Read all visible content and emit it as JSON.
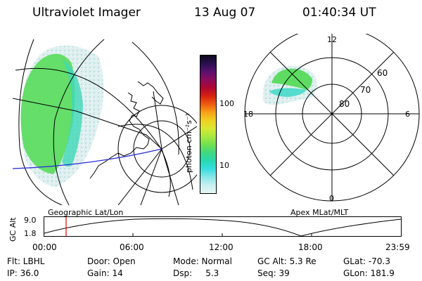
{
  "header": {
    "instrument": "Ultraviolet Imager",
    "date": "13 Aug 07",
    "time": "01:40:34 UT"
  },
  "colorbar": {
    "label": "photon cm⁻²s⁻¹",
    "ticks": [
      "100",
      "10"
    ],
    "colors": [
      "#0d0a1e",
      "#2a0f50",
      "#5a1070",
      "#8a0c5c",
      "#b00830",
      "#d82010",
      "#ee5a10",
      "#f8a018",
      "#f0d020",
      "#d8e830",
      "#a8e840",
      "#70e050",
      "#40d880",
      "#28d8b0",
      "#38dce0",
      "#88e8e8",
      "#c8f0f0",
      "#e6f6f6"
    ]
  },
  "left_panel": {
    "label": "Geographic Lat/Lon"
  },
  "right_panel": {
    "label": "Apex MLat/MLT",
    "mlt_labels": [
      "12",
      "18",
      "6",
      "0"
    ],
    "lat_labels": [
      "60",
      "70",
      "80"
    ]
  },
  "timeline": {
    "y_axis_label": "GC Alt",
    "y_ticks": [
      "9.0",
      "1.8"
    ],
    "x_ticks": [
      "00:00",
      "06:00",
      "12:00",
      "18:00",
      "23:59"
    ],
    "marker_color": "#dd0000"
  },
  "info": {
    "row1": [
      "Flt: LBHL",
      "Door: Open",
      "Mode: Normal",
      "GC Alt: 5.3 Re",
      "GLat: -70.3"
    ],
    "row2": [
      "IP: 36.0",
      "Gain: 14",
      "Dsp:     5.3",
      "Seq: 39",
      "GLon: 181.9"
    ]
  }
}
